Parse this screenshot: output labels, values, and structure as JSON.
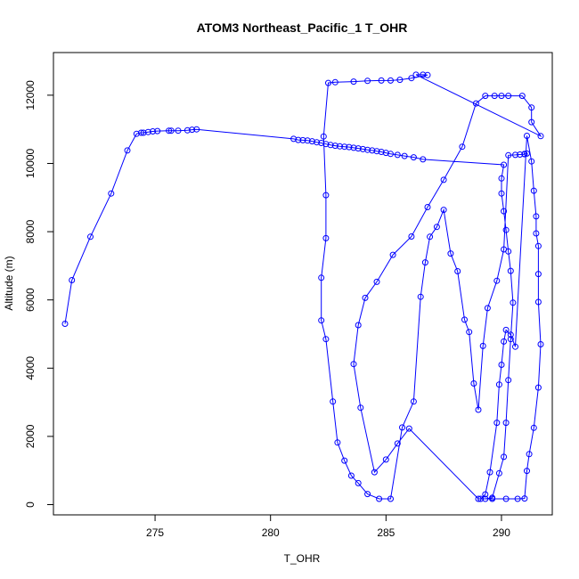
{
  "chart_data": {
    "type": "line",
    "title": "ATOM3 Northeast_Pacific_1 T_OHR",
    "xlabel": "T_OHR",
    "ylabel": "Altitude (m)",
    "xlim": [
      270.6,
      292.2
    ],
    "ylim": [
      -300,
      13250
    ],
    "x_ticks": [
      275,
      280,
      285,
      290
    ],
    "y_ticks": [
      0,
      2000,
      4000,
      6000,
      8000,
      10000,
      12000
    ],
    "line_color": "#0000ff",
    "marker": "open-circle",
    "grid": false,
    "legend": "none",
    "series": [
      {
        "x": [
          271.1,
          271.4,
          272.2,
          273.1,
          273.8,
          274.2,
          274.4,
          274.5,
          274.7,
          274.9,
          275.1,
          275.6,
          275.7,
          276.0,
          276.4,
          276.6,
          276.8,
          281.0,
          281.2,
          281.4,
          281.6,
          281.8,
          282.0,
          282.2,
          282.4,
          282.6,
          282.8,
          283.0,
          283.2,
          283.4,
          283.6,
          283.8,
          284.0,
          284.2,
          284.4,
          284.6,
          284.8,
          285.0,
          285.2,
          285.5,
          285.8,
          286.2,
          286.6,
          290.1,
          290.0,
          290.0,
          290.1,
          290.2,
          290.3,
          290.4,
          290.5,
          290.4,
          290.3,
          290.2,
          290.1,
          289.9,
          289.6,
          289.3,
          289.1,
          289.3,
          289.5,
          289.8,
          289.9,
          290.0,
          290.1,
          290.2,
          290.4,
          290.6,
          291.1,
          291.3,
          291.4,
          291.5,
          291.5,
          291.6,
          291.6,
          291.6,
          291.7,
          291.6,
          291.4,
          291.2,
          291.1,
          291.0,
          290.7,
          290.2,
          289.6,
          289.0,
          286.0,
          285.5,
          285.0,
          284.5,
          283.9,
          283.6,
          283.8,
          284.1,
          284.6,
          285.3,
          286.1,
          286.8,
          287.5,
          288.3,
          288.9,
          289.3,
          289.7,
          290.0,
          290.3,
          290.9,
          291.3,
          291.3,
          291.7,
          286.3,
          286.6,
          286.8,
          286.1,
          285.6,
          285.2,
          284.8,
          284.2,
          283.6,
          282.8,
          282.5,
          282.3,
          282.4,
          282.4,
          282.2,
          282.2,
          282.4,
          282.7,
          282.9,
          283.2,
          283.5,
          283.8,
          284.2,
          284.7,
          285.2,
          285.7,
          286.2,
          286.5,
          286.7,
          286.9,
          287.2,
          287.5,
          287.8,
          288.1,
          288.4,
          288.6,
          288.8,
          289.0,
          289.2,
          289.4,
          289.8,
          290.1,
          290.3,
          290.6,
          290.8,
          291.0,
          291.0,
          291.1
        ],
        "y": [
          5300,
          6580,
          7850,
          9120,
          10380,
          10870,
          10900,
          10900,
          10920,
          10940,
          10950,
          10960,
          10960,
          10960,
          10970,
          10990,
          11000,
          10720,
          10690,
          10680,
          10670,
          10650,
          10620,
          10600,
          10570,
          10540,
          10520,
          10500,
          10490,
          10480,
          10460,
          10440,
          10420,
          10400,
          10380,
          10360,
          10340,
          10310,
          10280,
          10250,
          10220,
          10180,
          10120,
          9960,
          9560,
          9120,
          8600,
          8050,
          7420,
          6850,
          5920,
          4850,
          3650,
          2400,
          1400,
          920,
          200,
          170,
          170,
          300,
          950,
          2400,
          3520,
          4100,
          4780,
          5120,
          4980,
          4630,
          10810,
          10060,
          9200,
          8450,
          7950,
          7580,
          6760,
          5940,
          4700,
          3430,
          2250,
          1480,
          990,
          180,
          170,
          170,
          170,
          170,
          2230,
          1790,
          1320,
          950,
          2840,
          4120,
          5260,
          6060,
          6530,
          7320,
          7860,
          8720,
          9520,
          10490,
          11760,
          11980,
          11980,
          11980,
          11980,
          11980,
          11640,
          11210,
          10800,
          12600,
          12600,
          12590,
          12500,
          12450,
          12430,
          12430,
          12420,
          12400,
          12380,
          12360,
          10790,
          9070,
          7810,
          6650,
          5400,
          4850,
          3020,
          1820,
          1290,
          850,
          630,
          310,
          170,
          170,
          2260,
          3020,
          6090,
          7100,
          7850,
          8140,
          8640,
          7360,
          6840,
          5420,
          5060,
          3550,
          2780,
          4650,
          5760,
          6560,
          7480,
          10240,
          10250,
          10260,
          10270,
          10280,
          10290
        ]
      }
    ]
  }
}
